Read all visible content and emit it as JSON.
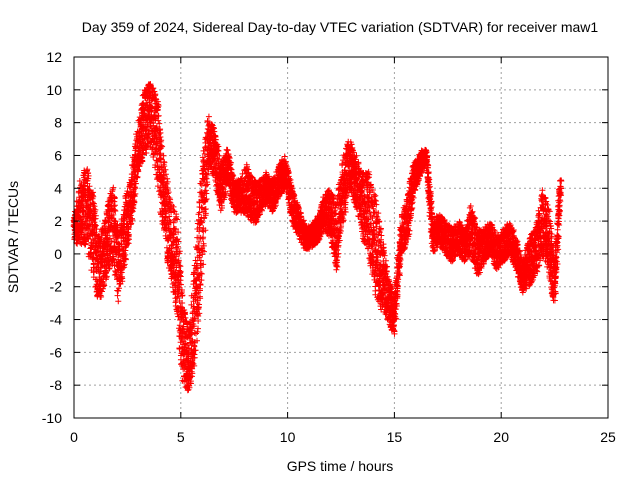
{
  "chart_data": {
    "type": "scatter",
    "title": "Day 359 of 2024, Sidereal Day-to-day VTEC variation (SDTVAR) for receiver maw1",
    "xlabel": "GPS time / hours",
    "ylabel": "SDTVAR / TECUs",
    "xlim": [
      0,
      25
    ],
    "ylim": [
      -10,
      12
    ],
    "xticks": [
      0,
      5,
      10,
      15,
      20,
      25
    ],
    "yticks": [
      -10,
      -8,
      -6,
      -4,
      -2,
      0,
      2,
      4,
      6,
      8,
      10,
      12
    ],
    "grid": true,
    "marker": "+",
    "color": "#ff0000",
    "series": [
      {
        "name": "SDTVAR",
        "track_note": "approximate central track of dense point cloud (hours, TECU) with vertical spread",
        "x": [
          0.0,
          0.3,
          0.6,
          0.9,
          1.2,
          1.5,
          1.8,
          2.1,
          2.4,
          2.7,
          3.0,
          3.3,
          3.6,
          3.9,
          4.2,
          4.5,
          4.8,
          5.1,
          5.4,
          5.7,
          6.0,
          6.3,
          6.6,
          6.9,
          7.2,
          7.5,
          7.8,
          8.1,
          8.4,
          8.7,
          9.0,
          9.3,
          9.6,
          9.9,
          10.2,
          10.5,
          10.8,
          11.1,
          11.4,
          11.7,
          12.0,
          12.3,
          12.6,
          12.9,
          13.2,
          13.5,
          13.8,
          14.1,
          14.4,
          14.7,
          15.0,
          15.3,
          15.6,
          15.9,
          16.2,
          16.5,
          16.8,
          17.1,
          17.4,
          17.7,
          18.0,
          18.3,
          18.6,
          18.9,
          19.2,
          19.5,
          19.8,
          20.1,
          20.4,
          20.7,
          21.0,
          21.3,
          21.6,
          21.9,
          22.2,
          22.5,
          22.8
        ],
        "y": [
          1.5,
          2.5,
          3.0,
          1.0,
          -1.0,
          0.5,
          2.0,
          -1.0,
          1.5,
          3.5,
          6.5,
          8.0,
          8.5,
          7.0,
          3.5,
          1.0,
          -0.5,
          -5.5,
          -6.5,
          -3.0,
          2.0,
          7.0,
          6.0,
          4.0,
          5.5,
          3.5,
          3.5,
          4.0,
          3.0,
          3.5,
          4.0,
          3.5,
          4.5,
          5.0,
          3.0,
          2.0,
          1.0,
          1.0,
          1.5,
          2.5,
          2.5,
          1.0,
          4.0,
          5.5,
          4.5,
          3.0,
          2.5,
          0.5,
          -1.0,
          -2.5,
          -4.0,
          1.0,
          2.0,
          4.5,
          5.5,
          6.0,
          1.0,
          1.5,
          1.0,
          0.5,
          1.0,
          0.5,
          1.5,
          0.0,
          0.5,
          1.0,
          0.0,
          0.5,
          1.0,
          0.0,
          -1.5,
          -0.5,
          0.0,
          2.0,
          1.0,
          -2.0,
          4.5
        ],
        "spread": [
          0.8,
          2.0,
          2.5,
          2.5,
          2.0,
          2.0,
          2.5,
          2.0,
          2.0,
          1.5,
          1.5,
          2.0,
          2.0,
          2.5,
          2.5,
          2.5,
          3.0,
          2.5,
          2.0,
          3.0,
          3.5,
          1.5,
          1.5,
          1.5,
          1.0,
          1.0,
          1.0,
          1.5,
          1.5,
          1.0,
          1.0,
          1.0,
          1.0,
          1.0,
          1.0,
          1.0,
          0.7,
          0.7,
          0.8,
          1.0,
          1.5,
          2.0,
          2.0,
          1.5,
          1.5,
          2.0,
          2.5,
          3.0,
          2.5,
          1.5,
          1.0,
          1.0,
          1.5,
          1.0,
          0.7,
          0.5,
          1.0,
          1.0,
          1.0,
          1.0,
          1.0,
          1.0,
          1.5,
          1.5,
          1.0,
          1.0,
          1.0,
          1.0,
          1.0,
          1.0,
          1.0,
          1.5,
          1.5,
          2.0,
          2.0,
          1.5,
          0.5
        ]
      }
    ]
  }
}
